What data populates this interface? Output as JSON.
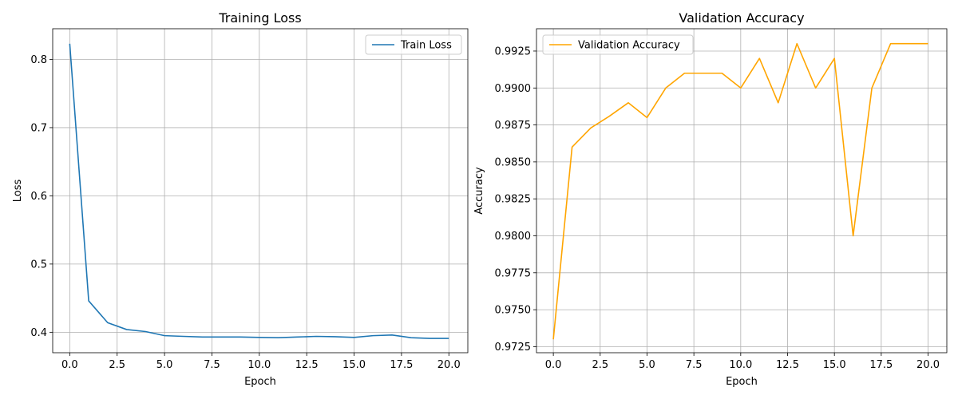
{
  "chart_data": [
    {
      "type": "line",
      "title": "Training Loss",
      "xlabel": "Epoch",
      "ylabel": "Loss",
      "xlim": [
        -0.9,
        21
      ],
      "ylim": [
        0.37,
        0.845
      ],
      "xticks": [
        0,
        2.5,
        5,
        7.5,
        10,
        12.5,
        15,
        17.5,
        20
      ],
      "xtick_labels": [
        "0.0",
        "2.5",
        "5.0",
        "7.5",
        "10.0",
        "12.5",
        "15.0",
        "17.5",
        "20.0"
      ],
      "yticks": [
        0.4,
        0.5,
        0.6,
        0.7,
        0.8
      ],
      "ytick_labels": [
        "0.4",
        "0.5",
        "0.6",
        "0.7",
        "0.8"
      ],
      "grid": true,
      "legend_position": "top-right",
      "series": [
        {
          "name": "Train Loss",
          "color": "#1f77b4",
          "x": [
            0,
            1,
            2,
            3,
            4,
            5,
            6,
            7,
            8,
            9,
            10,
            11,
            12,
            13,
            14,
            15,
            16,
            17,
            18,
            19,
            20
          ],
          "values": [
            0.823,
            0.446,
            0.414,
            0.404,
            0.401,
            0.395,
            0.394,
            0.393,
            0.393,
            0.393,
            0.3925,
            0.392,
            0.393,
            0.394,
            0.3935,
            0.3925,
            0.395,
            0.396,
            0.392,
            0.391,
            0.391
          ]
        }
      ]
    },
    {
      "type": "line",
      "title": "Validation Accuracy",
      "xlabel": "Epoch",
      "ylabel": "Accuracy",
      "xlim": [
        -0.9,
        21
      ],
      "ylim": [
        0.97209,
        0.99401
      ],
      "xticks": [
        0,
        2.5,
        5,
        7.5,
        10,
        12.5,
        15,
        17.5,
        20
      ],
      "xtick_labels": [
        "0.0",
        "2.5",
        "5.0",
        "7.5",
        "10.0",
        "12.5",
        "15.0",
        "17.5",
        "20.0"
      ],
      "yticks": [
        0.9725,
        0.975,
        0.9775,
        0.98,
        0.9825,
        0.985,
        0.9875,
        0.99,
        0.9925
      ],
      "ytick_labels": [
        "0.9725",
        "0.9750",
        "0.9775",
        "0.9800",
        "0.9825",
        "0.9850",
        "0.9875",
        "0.9900",
        "0.9925"
      ],
      "grid": true,
      "legend_position": "top-left",
      "series": [
        {
          "name": "Validation Accuracy",
          "color": "#ffa500",
          "x": [
            0,
            1,
            2,
            3,
            4,
            5,
            6,
            7,
            8,
            9,
            10,
            11,
            12,
            13,
            14,
            15,
            16,
            17,
            18,
            19,
            20
          ],
          "values": [
            0.973,
            0.986,
            0.9873,
            0.9881,
            0.989,
            0.988,
            0.99,
            0.991,
            0.991,
            0.991,
            0.99,
            0.992,
            0.989,
            0.993,
            0.99,
            0.992,
            0.98,
            0.99,
            0.993,
            0.993,
            0.993
          ]
        }
      ]
    }
  ]
}
